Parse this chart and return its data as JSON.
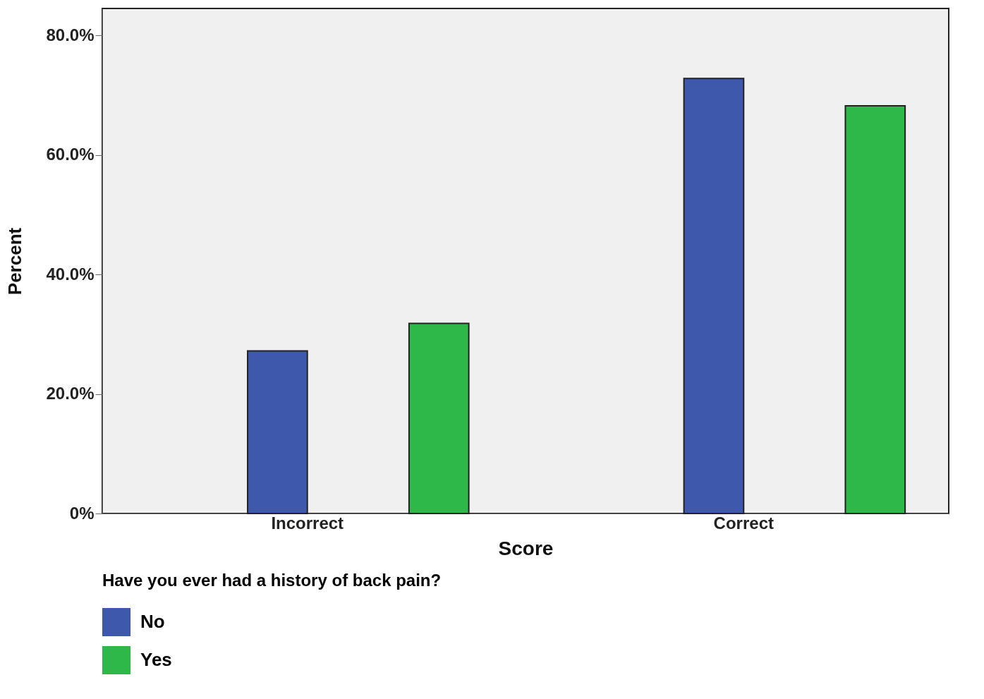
{
  "chart_data": {
    "type": "bar",
    "xlabel": "Score",
    "ylabel": "Percent",
    "legend_title": "Have you ever had a history of back pain?",
    "categories": [
      "Incorrect",
      "Correct"
    ],
    "series": [
      {
        "name": "No",
        "color": "#3e58ab",
        "values": [
          27.2,
          72.8
        ]
      },
      {
        "name": "Yes",
        "color": "#2fb84a",
        "values": [
          31.8,
          68.2
        ]
      }
    ],
    "ylim": [
      0,
      84.5
    ],
    "yticks": [
      {
        "value": 0,
        "label": "0%"
      },
      {
        "value": 20,
        "label": "20.0%"
      },
      {
        "value": 40,
        "label": "40.0%"
      },
      {
        "value": 60,
        "label": "60.0%"
      },
      {
        "value": 80,
        "label": "80.0%"
      }
    ],
    "grid": false,
    "legend": "bottom"
  }
}
